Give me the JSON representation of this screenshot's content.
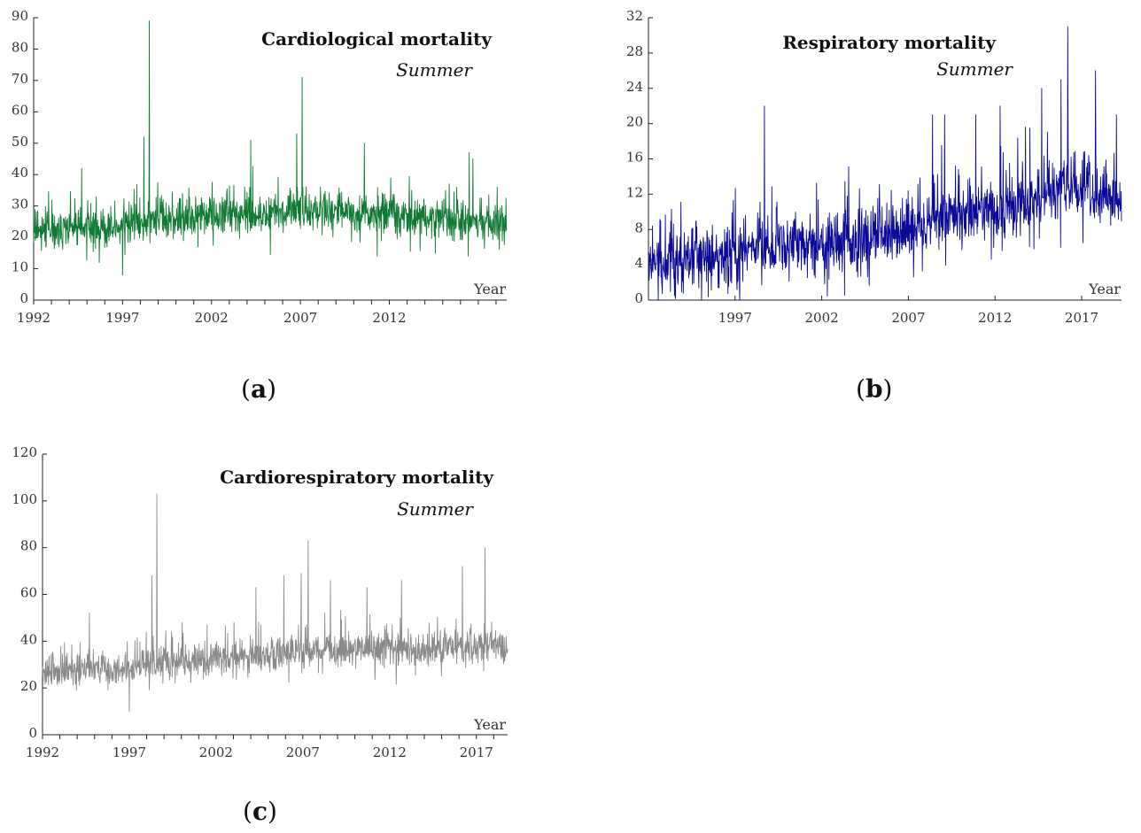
{
  "chart_data": [
    {
      "type": "line",
      "panel_label": "a",
      "title": "Cardiological mortality",
      "subtitle": "Summer",
      "xlabel": "Year",
      "ylabel": "",
      "color": "#0f7a32",
      "x_range": [
        1992,
        2018.6
      ],
      "ylim": [
        0,
        90
      ],
      "yticks": [
        0,
        10,
        20,
        30,
        40,
        50,
        60,
        70,
        80,
        90
      ],
      "xtick_labels": [
        1992,
        1997,
        2002,
        2007,
        2012
      ],
      "xtick_minor": [
        1992,
        1993,
        1994,
        1995,
        1996,
        1997,
        1998,
        1999,
        2000,
        2001,
        2002,
        2003,
        2004,
        2005,
        2006,
        2007,
        2008,
        2009,
        2010,
        2011,
        2012,
        2013,
        2014,
        2015,
        2016,
        2017,
        2018
      ],
      "series": [
        {
          "name": "Cardiological mortality (summer)",
          "baseline": [
            [
              1992,
              22
            ],
            [
              1996,
              23
            ],
            [
              1999,
              25
            ],
            [
              2002,
              27
            ],
            [
              2005,
              27
            ],
            [
              2008,
              29
            ],
            [
              2011,
              28
            ],
            [
              2014,
              26
            ],
            [
              2018.6,
              24
            ]
          ],
          "noise": 5,
          "peaks": [
            [
              1998.5,
              89
            ],
            [
              1998.2,
              52
            ],
            [
              2007.1,
              71
            ],
            [
              2006.8,
              53
            ],
            [
              2004.2,
              51
            ],
            [
              2010.6,
              50
            ],
            [
              2016.5,
              47
            ],
            [
              2016.7,
              45
            ],
            [
              1994.7,
              42
            ],
            [
              1997.0,
              8
            ]
          ]
        }
      ]
    },
    {
      "type": "line",
      "panel_label": "b",
      "title": "Respiratory mortality",
      "subtitle": "Summer",
      "xlabel": "Year",
      "ylabel": "",
      "color": "#0a0a96",
      "x_range": [
        1992,
        2019.3
      ],
      "ylim": [
        0,
        32
      ],
      "yticks": [
        0,
        4,
        8,
        12,
        16,
        20,
        24,
        28,
        32
      ],
      "xtick_labels": [
        1997,
        2002,
        2007,
        2012,
        2017
      ],
      "xtick_minor": [
        1997,
        2002,
        2007,
        2012,
        2017
      ],
      "series": [
        {
          "name": "Respiratory mortality (summer)",
          "baseline": [
            [
              1992,
              4.5
            ],
            [
              1996,
              4.5
            ],
            [
              1998,
              6
            ],
            [
              2002,
              6.5
            ],
            [
              2005,
              7
            ],
            [
              2008,
              9
            ],
            [
              2011,
              10
            ],
            [
              2014,
              11
            ],
            [
              2016,
              13
            ],
            [
              2019.3,
              11
            ]
          ],
          "noise": 2.8,
          "peaks": [
            [
              1998.7,
              22
            ],
            [
              2016.2,
              31
            ],
            [
              2015.8,
              25
            ],
            [
              2017.8,
              26
            ],
            [
              2014.7,
              24
            ],
            [
              2012.3,
              22
            ],
            [
              2010.9,
              21
            ],
            [
              2009.1,
              21
            ],
            [
              2008.4,
              21
            ],
            [
              2019.0,
              21
            ],
            [
              1993.5,
              0.5
            ]
          ]
        }
      ]
    },
    {
      "type": "line",
      "panel_label": "c",
      "title": "Cardiorespiratory mortality",
      "subtitle": "Summer",
      "xlabel": "Year",
      "ylabel": "",
      "color": "#8a8a8a",
      "x_range": [
        1992,
        2018.8
      ],
      "ylim": [
        0,
        120
      ],
      "yticks": [
        0,
        20,
        40,
        60,
        80,
        100,
        120
      ],
      "xtick_labels": [
        1992,
        1997,
        2002,
        2007,
        2012,
        2017
      ],
      "xtick_minor": [
        1992,
        1993,
        1994,
        1995,
        1996,
        1997,
        1998,
        1999,
        2000,
        2001,
        2002,
        2003,
        2004,
        2005,
        2006,
        2007,
        2008,
        2009,
        2010,
        2011,
        2012,
        2013,
        2014,
        2015,
        2016,
        2017,
        2018
      ],
      "series": [
        {
          "name": "Cardiorespiratory mortality (summer)",
          "baseline": [
            [
              1992,
              27
            ],
            [
              1996,
              28
            ],
            [
              1999,
              31
            ],
            [
              2002,
              33
            ],
            [
              2005,
              34
            ],
            [
              2008,
              36
            ],
            [
              2011,
              37
            ],
            [
              2014,
              36
            ],
            [
              2016,
              38
            ],
            [
              2018.8,
              38
            ]
          ],
          "noise": 6,
          "peaks": [
            [
              1998.6,
              103
            ],
            [
              2007.3,
              83
            ],
            [
              2017.5,
              80
            ],
            [
              2016.2,
              72
            ],
            [
              2006.9,
              69
            ],
            [
              2008.6,
              66
            ],
            [
              2012.7,
              66
            ],
            [
              1998.3,
              68
            ],
            [
              2005.9,
              68
            ],
            [
              2004.3,
              63
            ],
            [
              2010.7,
              63
            ],
            [
              1994.7,
              52
            ],
            [
              1997.0,
              10
            ]
          ]
        }
      ]
    }
  ]
}
